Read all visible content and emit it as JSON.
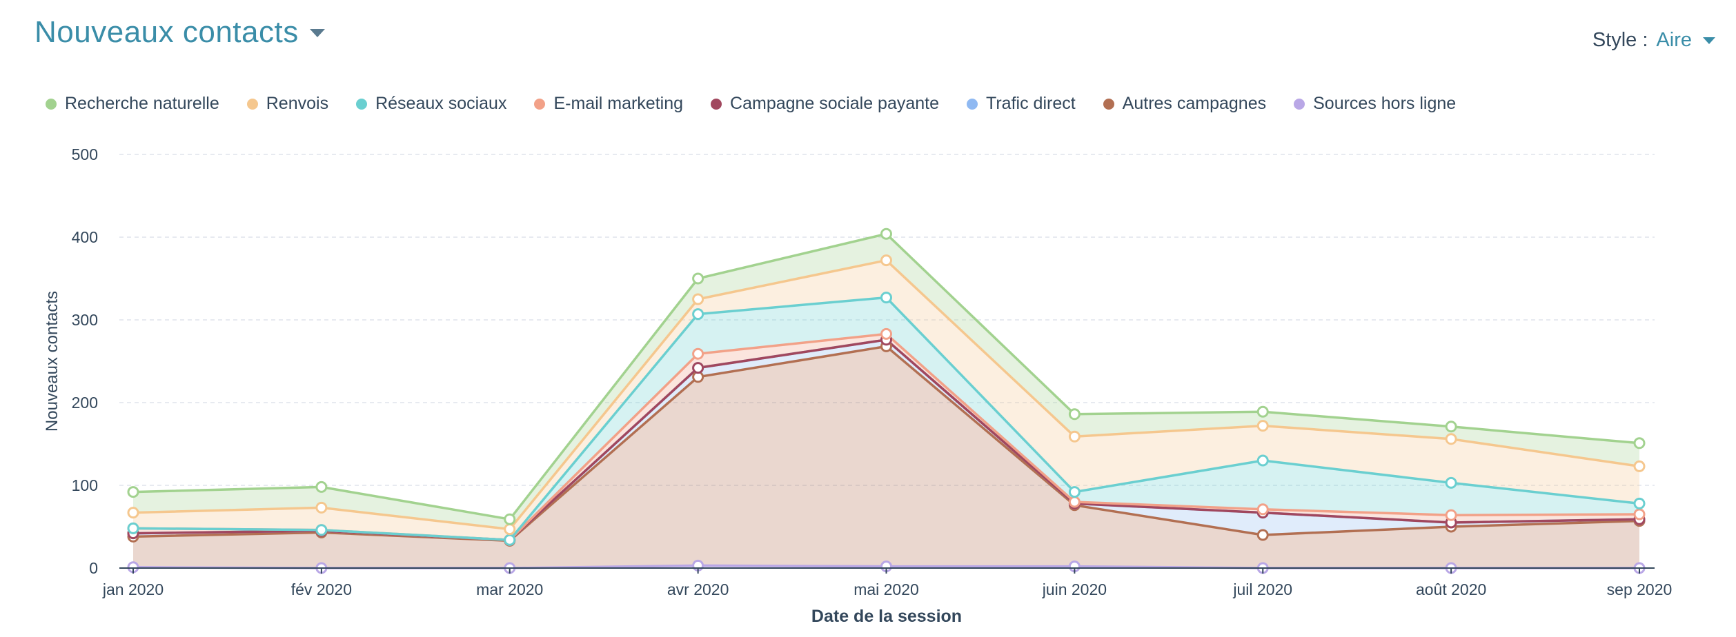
{
  "header": {
    "title": "Nouveaux contacts",
    "style_label": "Style :",
    "style_value": "Aire"
  },
  "chart_data": {
    "type": "area",
    "stacked": true,
    "ylabel": "Nouveaux contacts",
    "xlabel": "Date de la session",
    "ylim": [
      0,
      500
    ],
    "yticks": [
      0,
      100,
      200,
      300,
      400,
      500
    ],
    "grid": true,
    "legend_position": "top",
    "categories": [
      "jan 2020",
      "fév 2020",
      "mar 2020",
      "avr 2020",
      "mai 2020",
      "juin 2020",
      "juil 2020",
      "août 2020",
      "sep 2020"
    ],
    "series": [
      {
        "name": "Recherche naturelle",
        "color": "#a2d28f",
        "values": [
          25,
          25,
          12,
          25,
          32,
          27,
          17,
          15,
          28
        ]
      },
      {
        "name": "Renvois",
        "color": "#f5c78e",
        "values": [
          19,
          27,
          13,
          18,
          45,
          67,
          42,
          53,
          45
        ]
      },
      {
        "name": "Réseaux sociaux",
        "color": "#6acfd0",
        "values": [
          0,
          0,
          0,
          48,
          44,
          12,
          59,
          39,
          13
        ]
      },
      {
        "name": "E-mail marketing",
        "color": "#f2a188",
        "values": [
          6,
          1,
          0,
          17,
          7,
          2,
          4,
          9,
          6
        ]
      },
      {
        "name": "Campagne sociale payante",
        "color": "#a1475e",
        "values": [
          0,
          0,
          0,
          0,
          0,
          0,
          0,
          0,
          0
        ]
      },
      {
        "name": "Trafic direct",
        "color": "#8fb9f2",
        "values": [
          4,
          2,
          1,
          11,
          8,
          2,
          27,
          5,
          2
        ]
      },
      {
        "name": "Autres campagnes",
        "color": "#b26f52",
        "values": [
          37,
          43,
          33,
          228,
          266,
          74,
          40,
          50,
          57
        ]
      },
      {
        "name": "Sources hors ligne",
        "color": "#b9a7e6",
        "values": [
          1,
          0,
          0,
          3,
          2,
          2,
          0,
          0,
          0
        ]
      }
    ]
  },
  "colors": {
    "title": "#3a8da8",
    "text": "#33475b",
    "grid": "#dfe3eb",
    "axis": "#33475b"
  }
}
